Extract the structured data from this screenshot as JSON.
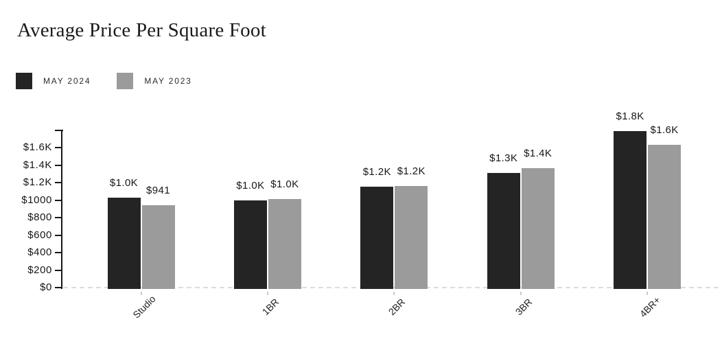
{
  "title": "Average Price Per Square Foot",
  "chart_data": {
    "type": "bar",
    "title": "Average Price Per Square Foot",
    "categories": [
      "Studio",
      "1BR",
      "2BR",
      "3BR",
      "4BR+"
    ],
    "series": [
      {
        "name": "MAY 2024",
        "color": "#242424",
        "values": [
          1025,
          1000,
          1155,
          1312,
          1791
        ],
        "value_labels": [
          "$1.0K",
          "$1.0K",
          "$1.2K",
          "$1.3K",
          "$1.8K"
        ]
      },
      {
        "name": "MAY 2023",
        "color": "#9b9b9b",
        "values": [
          941,
          1012,
          1158,
          1365,
          1634
        ],
        "value_labels": [
          "$941",
          "$1.0K",
          "$1.2K",
          "$1.4K",
          "$1.6K"
        ]
      }
    ],
    "y_tick_labels": [
      "$0",
      "$200",
      "$400",
      "$600",
      "$800",
      "$1000",
      "$1.2K",
      "$1.4K",
      "$1.6K"
    ],
    "y_tick_values": [
      0,
      200,
      400,
      600,
      800,
      1000,
      1200,
      1400,
      1600
    ],
    "ylim": [
      0,
      1800
    ],
    "xlabel": "",
    "ylabel": "",
    "grid": false,
    "baseline_style": "dashed",
    "x_label_rotation_deg": -45,
    "legend_position": "top-left"
  }
}
